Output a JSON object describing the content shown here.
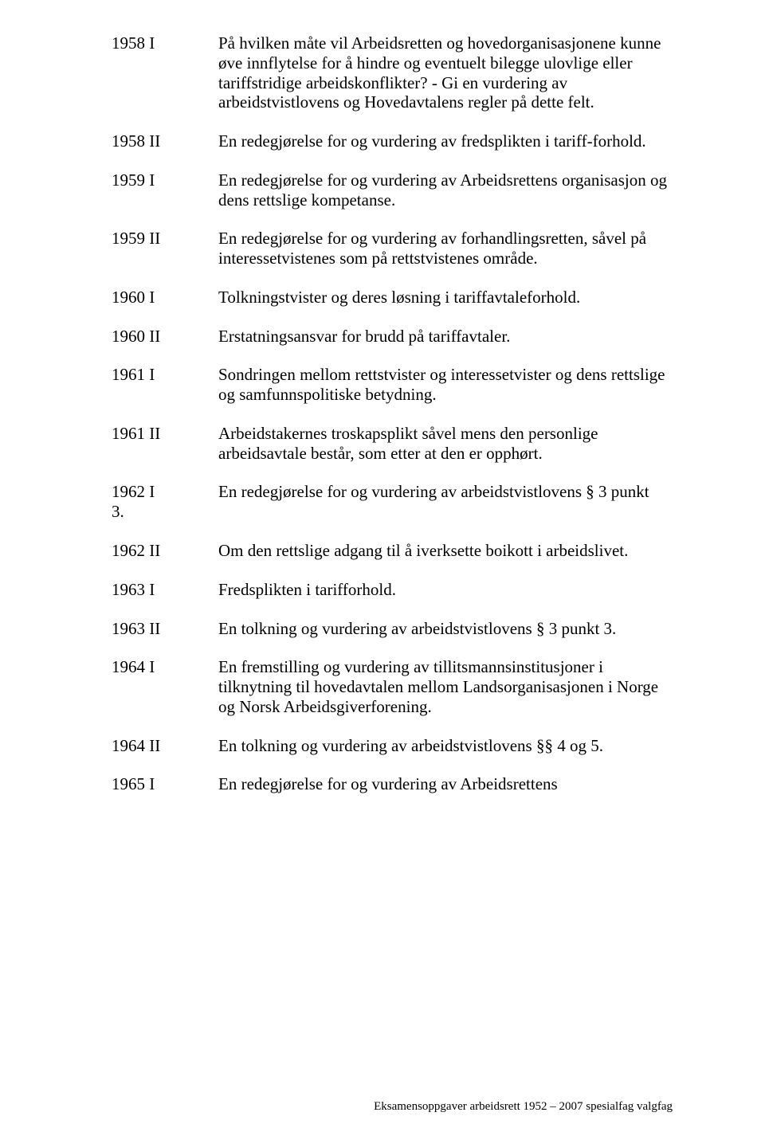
{
  "entries": [
    {
      "year": "1958 I",
      "text": "På hvilken måte vil Arbeidsretten og hovedorganisasjonene kunne øve innflytelse for å hindre og eventuelt bilegge ulovlige eller tariffstridige arbeidskonflikter? - Gi en vurdering av arbeidstvistlovens og Hovedavtalens regler på dette felt."
    },
    {
      "year": "1958 II",
      "text": "En redegjørelse for og vurdering av fredsplikten i tariff-forhold."
    },
    {
      "year": "1959 I",
      "text": "En redegjørelse for og vurdering av Arbeidsrettens organisasjon og dens rettslige kompetanse."
    },
    {
      "year": "1959 II",
      "text": "En redegjørelse for og vurdering av forhandlingsretten, såvel på interessetvistenes som på rettstvistenes område."
    },
    {
      "year": "1960 I",
      "text": "Tolkningstvister og deres løsning i tariffavtaleforhold."
    },
    {
      "year": "1960 II",
      "text": "Erstatningsansvar for brudd på tariffavtaler."
    },
    {
      "year": "1961 I",
      "text": "Sondringen mellom rettstvister og interessetvister og dens rettslige og samfunnspolitiske betydning."
    },
    {
      "year": "1961 II",
      "text": "Arbeidstakernes troskapsplikt såvel mens den personlige arbeidsavtale består, som etter at den er opphørt."
    },
    {
      "year": "1962 I\n3.",
      "text": "En redegjørelse for og vurdering av arbeidstvistlovens § 3 punkt"
    },
    {
      "year": "1962 II",
      "text": "Om  den rettslige adgang til å iverksette boikott i arbeidslivet."
    },
    {
      "year": "1963 I",
      "text": "Fredsplikten i tarifforhold."
    },
    {
      "year": "1963 II",
      "text": "En tolkning og vurdering av arbeidstvistlovens § 3 punkt 3."
    },
    {
      "year": "1964 I",
      "text": "En fremstilling og vurdering av tillitsmannsinstitusjoner i tilknytning til hovedavtalen mellom Landsorganisasjonen i Norge og Norsk Arbeidsgiverforening."
    },
    {
      "year": "1964 II",
      "text": "En tolkning og vurdering av arbeidstvistlovens §§ 4 og 5."
    },
    {
      "year": "1965 I",
      "text": "En redegjørelse for og vurdering av Arbeidsrettens"
    }
  ],
  "footer": "Eksamensoppgaver arbeidsrett 1952 – 2007 spesialfag valgfag"
}
